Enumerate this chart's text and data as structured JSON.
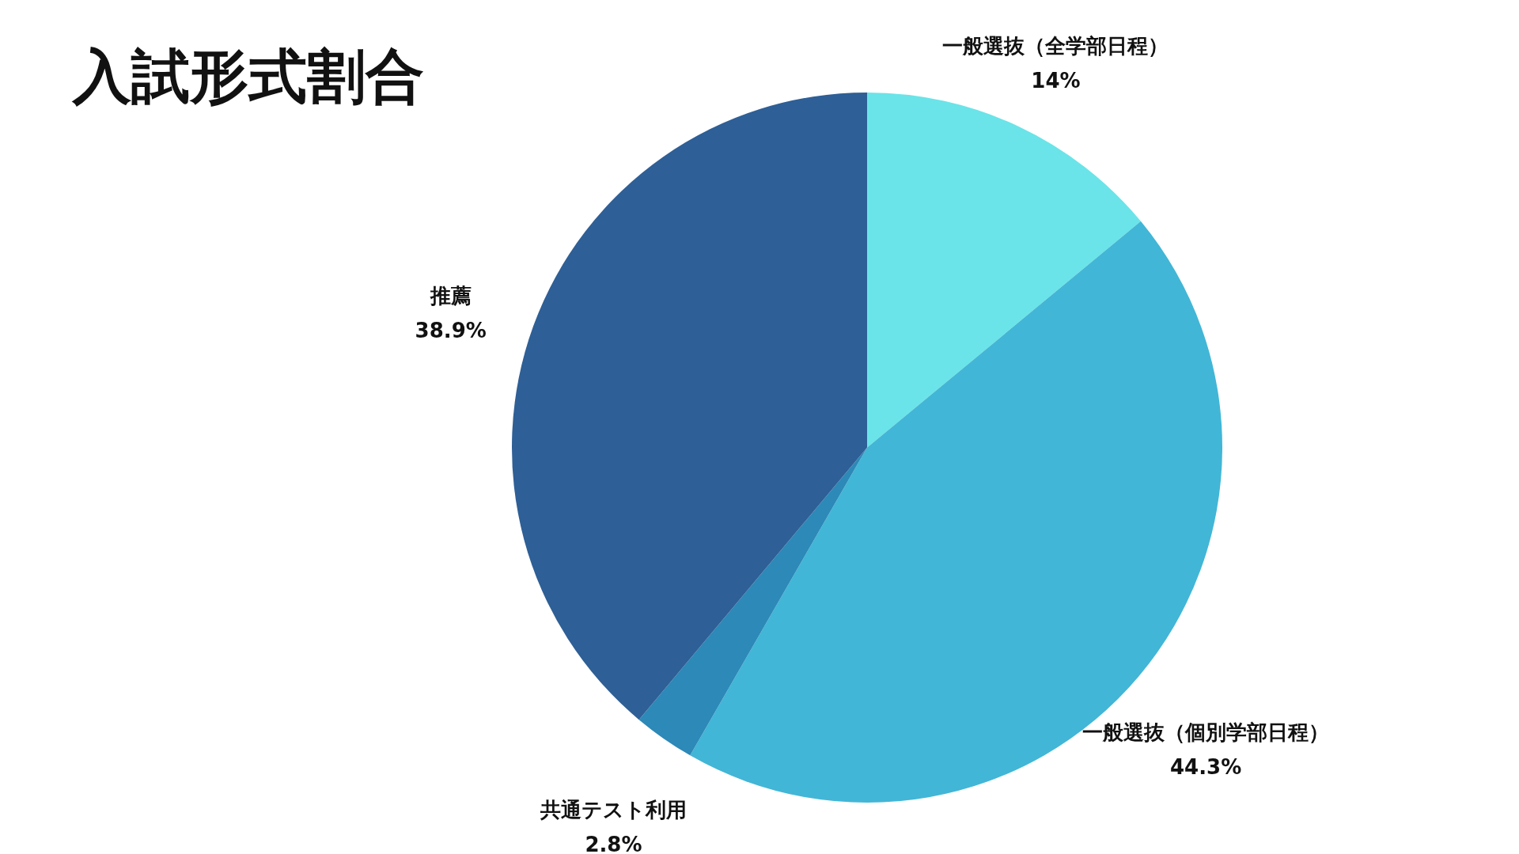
{
  "chart_data": {
    "type": "pie",
    "title": "入試形式割合",
    "categories": [
      "一般選抜（全学部日程）",
      "一般選抜（個別学部日程）",
      "共通テスト利用",
      "推薦"
    ],
    "values": [
      14,
      44.3,
      2.8,
      38.9
    ],
    "value_labels": [
      "14%",
      "44.3%",
      "2.8%",
      "38.9%"
    ],
    "colors": [
      "#6ae4e8",
      "#42b6d6",
      "#2c89b8",
      "#2e5f96"
    ],
    "legend": false
  }
}
